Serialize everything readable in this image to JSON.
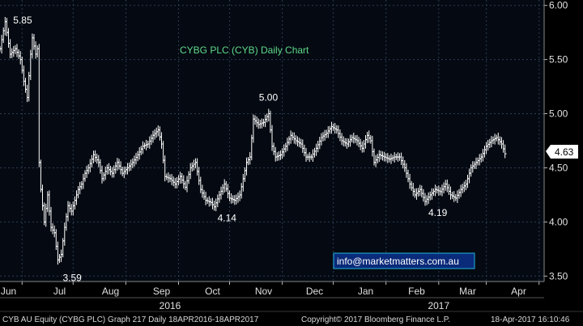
{
  "chart_data": {
    "type": "line",
    "style": "ohlc-bars",
    "title": "CYBG PLC (CYB) Daily Chart",
    "xlabel": "",
    "ylabel": "",
    "ylim": [
      3.45,
      6.05
    ],
    "y_ticks": [
      "6.00",
      "5.50",
      "5.00",
      "4.50",
      "4.00",
      "3.50"
    ],
    "y_tick_values": [
      6.0,
      5.5,
      5.0,
      4.5,
      4.0,
      3.5
    ],
    "x_ticks": [
      {
        "label": "Jun",
        "day": 5
      },
      {
        "label": "Jul",
        "day": 35
      },
      {
        "label": "Aug",
        "day": 65
      },
      {
        "label": "Sep",
        "day": 95
      },
      {
        "label": "Oct",
        "day": 125
      },
      {
        "label": "Nov",
        "day": 155
      },
      {
        "label": "Dec",
        "day": 185
      },
      {
        "label": "Jan",
        "day": 215
      },
      {
        "label": "Feb",
        "day": 245
      },
      {
        "label": "Mar",
        "day": 275
      },
      {
        "label": "Apr",
        "day": 305
      }
    ],
    "x_separators": [
      13,
      43,
      74,
      105,
      135,
      166,
      196,
      227,
      258,
      286,
      317
    ],
    "x_range": [
      0,
      320
    ],
    "year_labels": [
      {
        "label": "2016",
        "day": 100
      },
      {
        "label": "2017",
        "day": 258
      }
    ],
    "grid": true,
    "color": "#ffffff",
    "series": [
      {
        "points": [
          [
            0,
            5.6
          ],
          [
            3,
            5.85
          ],
          [
            6,
            5.55
          ],
          [
            9,
            5.6
          ],
          [
            12,
            5.5
          ],
          [
            14,
            5.3
          ],
          [
            16,
            5.15
          ],
          [
            18,
            5.55
          ],
          [
            19,
            5.7
          ],
          [
            21,
            5.55
          ],
          [
            22,
            5.6
          ],
          [
            23,
            4.55
          ],
          [
            24,
            4.3
          ],
          [
            26,
            4.0
          ],
          [
            28,
            4.25
          ],
          [
            30,
            3.95
          ],
          [
            32,
            3.9
          ],
          [
            34,
            3.65
          ],
          [
            36,
            3.7
          ],
          [
            38,
            3.95
          ],
          [
            40,
            4.15
          ],
          [
            42,
            4.1
          ],
          [
            44,
            4.2
          ],
          [
            46,
            4.3
          ],
          [
            48,
            4.35
          ],
          [
            50,
            4.45
          ],
          [
            52,
            4.5
          ],
          [
            55,
            4.62
          ],
          [
            58,
            4.55
          ],
          [
            60,
            4.4
          ],
          [
            63,
            4.5
          ],
          [
            66,
            4.45
          ],
          [
            69,
            4.55
          ],
          [
            72,
            4.45
          ],
          [
            75,
            4.5
          ],
          [
            78,
            4.55
          ],
          [
            81,
            4.62
          ],
          [
            84,
            4.7
          ],
          [
            87,
            4.72
          ],
          [
            90,
            4.8
          ],
          [
            93,
            4.85
          ],
          [
            95,
            4.72
          ],
          [
            97,
            4.42
          ],
          [
            100,
            4.4
          ],
          [
            103,
            4.35
          ],
          [
            106,
            4.42
          ],
          [
            109,
            4.32
          ],
          [
            112,
            4.5
          ],
          [
            115,
            4.55
          ],
          [
            118,
            4.3
          ],
          [
            121,
            4.2
          ],
          [
            124,
            4.18
          ],
          [
            126,
            4.14
          ],
          [
            129,
            4.25
          ],
          [
            132,
            4.35
          ],
          [
            135,
            4.22
          ],
          [
            138,
            4.2
          ],
          [
            141,
            4.25
          ],
          [
            143,
            4.4
          ],
          [
            145,
            4.55
          ],
          [
            147,
            4.6
          ],
          [
            149,
            4.95
          ],
          [
            152,
            4.9
          ],
          [
            155,
            4.92
          ],
          [
            158,
            5.0
          ],
          [
            160,
            4.7
          ],
          [
            162,
            4.6
          ],
          [
            165,
            4.62
          ],
          [
            168,
            4.7
          ],
          [
            171,
            4.8
          ],
          [
            174,
            4.75
          ],
          [
            177,
            4.72
          ],
          [
            180,
            4.6
          ],
          [
            183,
            4.6
          ],
          [
            186,
            4.68
          ],
          [
            189,
            4.78
          ],
          [
            192,
            4.82
          ],
          [
            195,
            4.88
          ],
          [
            198,
            4.85
          ],
          [
            201,
            4.75
          ],
          [
            204,
            4.72
          ],
          [
            207,
            4.78
          ],
          [
            210,
            4.75
          ],
          [
            213,
            4.68
          ],
          [
            216,
            4.8
          ],
          [
            218,
            4.75
          ],
          [
            220,
            4.55
          ],
          [
            223,
            4.62
          ],
          [
            226,
            4.6
          ],
          [
            229,
            4.58
          ],
          [
            232,
            4.6
          ],
          [
            235,
            4.6
          ],
          [
            238,
            4.5
          ],
          [
            241,
            4.35
          ],
          [
            244,
            4.25
          ],
          [
            247,
            4.3
          ],
          [
            250,
            4.19
          ],
          [
            253,
            4.25
          ],
          [
            256,
            4.3
          ],
          [
            259,
            4.28
          ],
          [
            262,
            4.35
          ],
          [
            265,
            4.25
          ],
          [
            268,
            4.22
          ],
          [
            271,
            4.3
          ],
          [
            274,
            4.35
          ],
          [
            277,
            4.5
          ],
          [
            280,
            4.55
          ],
          [
            283,
            4.6
          ],
          [
            286,
            4.7
          ],
          [
            289,
            4.75
          ],
          [
            292,
            4.78
          ],
          [
            295,
            4.72
          ],
          [
            297,
            4.63
          ]
        ]
      }
    ],
    "annotations": [
      {
        "text": "5.85",
        "day": 3,
        "value": 5.85
      },
      {
        "text": "3.59",
        "day": 35,
        "value": 3.59
      },
      {
        "text": "5.00",
        "day": 158,
        "value": 5.0
      },
      {
        "text": "4.14",
        "day": 126,
        "value": 4.14
      },
      {
        "text": "4.19",
        "day": 250,
        "value": 4.19
      }
    ],
    "last_value_label": "4.63",
    "last_value": 4.63
  },
  "watermark": "info@marketmatters.com.au",
  "footer": {
    "left": "CYB AU Equity (CYBG PLC) Graph 217  Daily 18APR2016-18APR2017",
    "center": "Copyright© 2017 Bloomberg Finance L.P.",
    "right": "18-Apr-2017 16:10:46"
  }
}
